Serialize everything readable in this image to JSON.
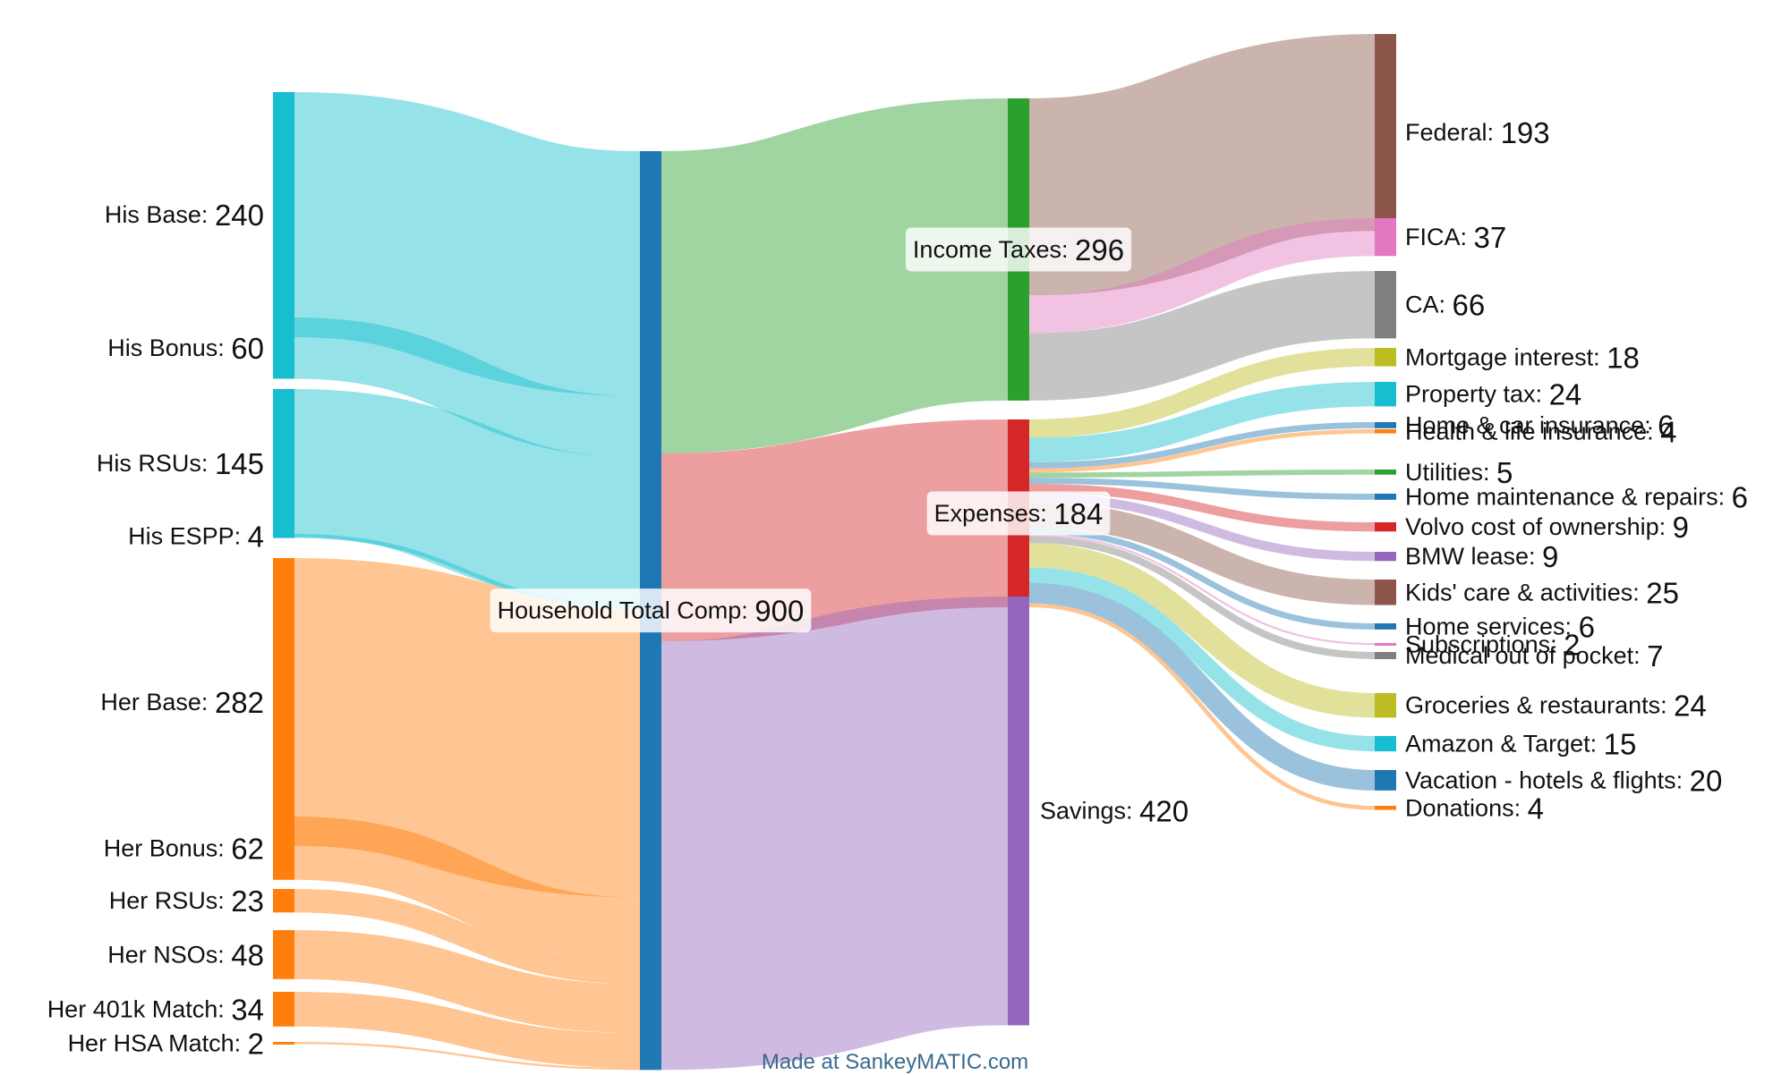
{
  "chart_data": {
    "type": "sankey",
    "credit": "Made at SankeyMATIC.com",
    "nodes": [
      {
        "id": "his_base",
        "name": "His Base",
        "value": 240,
        "column": 0,
        "color": "#17becf"
      },
      {
        "id": "his_bonus",
        "name": "His Bonus",
        "value": 60,
        "column": 0,
        "color": "#17becf"
      },
      {
        "id": "his_rsus",
        "name": "His RSUs",
        "value": 145,
        "column": 0,
        "color": "#17becf"
      },
      {
        "id": "his_espp",
        "name": "His ESPP",
        "value": 4,
        "column": 0,
        "color": "#17becf"
      },
      {
        "id": "her_base",
        "name": "Her Base",
        "value": 282,
        "column": 0,
        "color": "#ff7f0e"
      },
      {
        "id": "her_bonus",
        "name": "Her Bonus",
        "value": 62,
        "column": 0,
        "color": "#ff7f0e"
      },
      {
        "id": "her_rsus",
        "name": "Her RSUs",
        "value": 23,
        "column": 0,
        "color": "#ff7f0e"
      },
      {
        "id": "her_nsos",
        "name": "Her NSOs",
        "value": 48,
        "column": 0,
        "color": "#ff7f0e"
      },
      {
        "id": "her_401k",
        "name": "Her 401k Match",
        "value": 34,
        "column": 0,
        "color": "#ff7f0e"
      },
      {
        "id": "her_hsa",
        "name": "Her HSA Match",
        "value": 2,
        "column": 0,
        "color": "#ff7f0e"
      },
      {
        "id": "household",
        "name": "Household Total Comp",
        "value": 900,
        "column": 1,
        "color": "#1f77b4"
      },
      {
        "id": "taxes",
        "name": "Income Taxes",
        "value": 296,
        "column": 2,
        "color": "#2ca02c"
      },
      {
        "id": "expenses",
        "name": "Expenses",
        "value": 184,
        "column": 2,
        "color": "#d62728"
      },
      {
        "id": "savings",
        "name": "Savings",
        "value": 420,
        "column": 2,
        "color": "#9467bd"
      },
      {
        "id": "federal",
        "name": "Federal",
        "value": 193,
        "column": 3,
        "color": "#8c564b"
      },
      {
        "id": "fica",
        "name": "FICA",
        "value": 37,
        "column": 3,
        "color": "#e377c2"
      },
      {
        "id": "ca",
        "name": "CA",
        "value": 66,
        "column": 3,
        "color": "#7f7f7f"
      },
      {
        "id": "mortgage",
        "name": "Mortgage interest",
        "value": 18,
        "column": 3,
        "color": "#bcbd22"
      },
      {
        "id": "proptax",
        "name": "Property tax",
        "value": 24,
        "column": 3,
        "color": "#17becf"
      },
      {
        "id": "homecar",
        "name": "Home & car insurance",
        "value": 6,
        "column": 3,
        "color": "#1f77b4"
      },
      {
        "id": "health",
        "name": "Health & life insurance",
        "value": 4,
        "column": 3,
        "color": "#ff7f0e"
      },
      {
        "id": "utilities",
        "name": "Utilities",
        "value": 5,
        "column": 3,
        "color": "#2ca02c"
      },
      {
        "id": "homemaint",
        "name": "Home maintenance & repairs",
        "value": 6,
        "column": 3,
        "color": "#1f77b4"
      },
      {
        "id": "volvo",
        "name": "Volvo cost of ownership",
        "value": 9,
        "column": 3,
        "color": "#d62728"
      },
      {
        "id": "bmw",
        "name": "BMW lease",
        "value": 9,
        "column": 3,
        "color": "#9467bd"
      },
      {
        "id": "kids",
        "name": "Kids' care & activities",
        "value": 25,
        "column": 3,
        "color": "#8c564b"
      },
      {
        "id": "homesvc",
        "name": "Home services",
        "value": 6,
        "column": 3,
        "color": "#1f77b4"
      },
      {
        "id": "subs",
        "name": "Subscriptions",
        "value": 2,
        "column": 3,
        "color": "#e377c2"
      },
      {
        "id": "medical",
        "name": "Medical out of pocket",
        "value": 7,
        "column": 3,
        "color": "#7f7f7f"
      },
      {
        "id": "groceries",
        "name": "Groceries & restaurants",
        "value": 24,
        "column": 3,
        "color": "#bcbd22"
      },
      {
        "id": "amazon",
        "name": "Amazon & Target",
        "value": 15,
        "column": 3,
        "color": "#17becf"
      },
      {
        "id": "vacation",
        "name": "Vacation - hotels & flights",
        "value": 20,
        "column": 3,
        "color": "#1f77b4"
      },
      {
        "id": "donations",
        "name": "Donations",
        "value": 4,
        "column": 3,
        "color": "#ff7f0e"
      }
    ],
    "flows": [
      {
        "from": "his_base",
        "to": "household",
        "value": 240
      },
      {
        "from": "his_bonus",
        "to": "household",
        "value": 60
      },
      {
        "from": "his_rsus",
        "to": "household",
        "value": 145
      },
      {
        "from": "his_espp",
        "to": "household",
        "value": 4
      },
      {
        "from": "her_base",
        "to": "household",
        "value": 282
      },
      {
        "from": "her_bonus",
        "to": "household",
        "value": 62
      },
      {
        "from": "her_rsus",
        "to": "household",
        "value": 23
      },
      {
        "from": "her_nsos",
        "to": "household",
        "value": 48
      },
      {
        "from": "her_401k",
        "to": "household",
        "value": 34
      },
      {
        "from": "her_hsa",
        "to": "household",
        "value": 2
      },
      {
        "from": "household",
        "to": "taxes",
        "value": 296
      },
      {
        "from": "household",
        "to": "expenses",
        "value": 184
      },
      {
        "from": "household",
        "to": "savings",
        "value": 420
      },
      {
        "from": "taxes",
        "to": "federal",
        "value": 193
      },
      {
        "from": "taxes",
        "to": "fica",
        "value": 37
      },
      {
        "from": "taxes",
        "to": "ca",
        "value": 66
      },
      {
        "from": "expenses",
        "to": "mortgage",
        "value": 18
      },
      {
        "from": "expenses",
        "to": "proptax",
        "value": 24
      },
      {
        "from": "expenses",
        "to": "homecar",
        "value": 6
      },
      {
        "from": "expenses",
        "to": "health",
        "value": 4
      },
      {
        "from": "expenses",
        "to": "utilities",
        "value": 5
      },
      {
        "from": "expenses",
        "to": "homemaint",
        "value": 6
      },
      {
        "from": "expenses",
        "to": "volvo",
        "value": 9
      },
      {
        "from": "expenses",
        "to": "bmw",
        "value": 9
      },
      {
        "from": "expenses",
        "to": "kids",
        "value": 25
      },
      {
        "from": "expenses",
        "to": "homesvc",
        "value": 6
      },
      {
        "from": "expenses",
        "to": "subs",
        "value": 2
      },
      {
        "from": "expenses",
        "to": "medical",
        "value": 7
      },
      {
        "from": "expenses",
        "to": "groceries",
        "value": 24
      },
      {
        "from": "expenses",
        "to": "amazon",
        "value": 15
      },
      {
        "from": "expenses",
        "to": "vacation",
        "value": 20
      },
      {
        "from": "expenses",
        "to": "donations",
        "value": 4
      }
    ]
  }
}
